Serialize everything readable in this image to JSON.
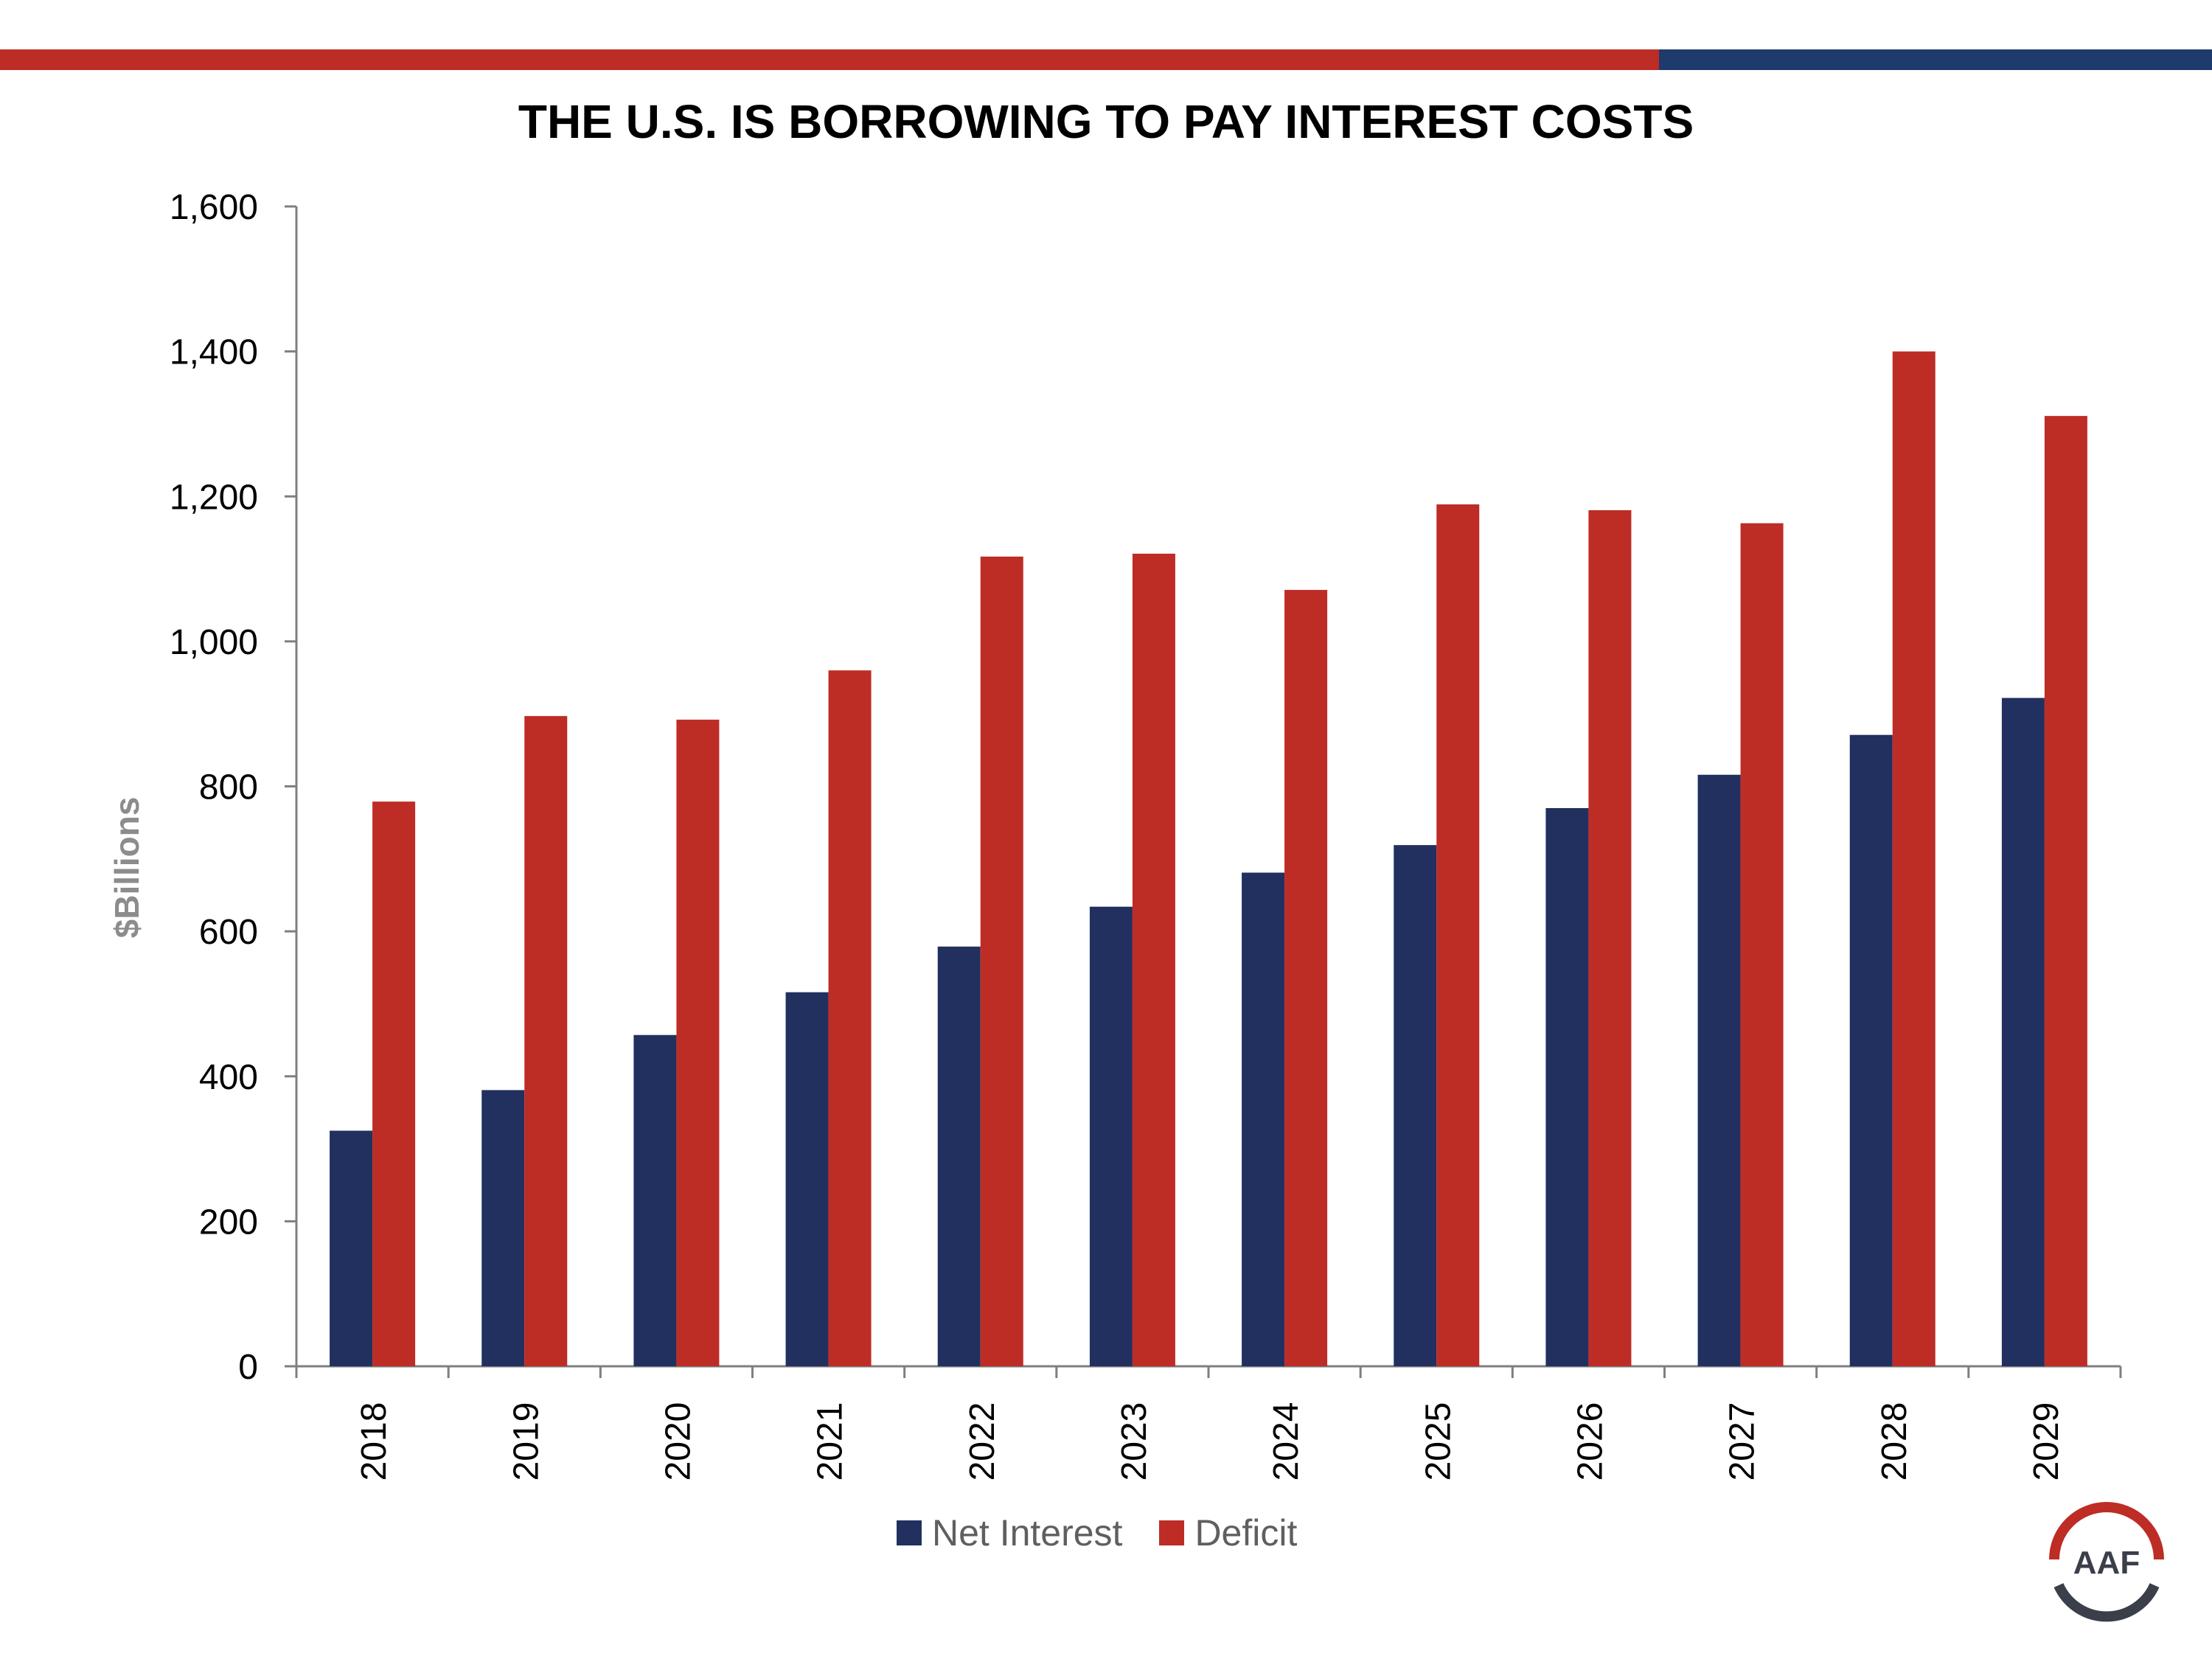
{
  "chart_data": {
    "type": "bar",
    "title": "THE U.S. IS BORROWING TO PAY INTEREST COSTS",
    "ylabel": "$Billions",
    "xlabel": "",
    "ylim": [
      0,
      1600
    ],
    "yticks": [
      "0",
      "200",
      "400",
      "600",
      "800",
      "1,000",
      "1,200",
      "1,400",
      "1,600"
    ],
    "categories": [
      "2018",
      "2019",
      "2020",
      "2021",
      "2022",
      "2023",
      "2024",
      "2025",
      "2026",
      "2027",
      "2028",
      "2029"
    ],
    "series": [
      {
        "name": "Net Interest",
        "color": "#22305F",
        "values": [
          325,
          381,
          457,
          516,
          579,
          634,
          681,
          719,
          770,
          816,
          871,
          922
        ]
      },
      {
        "name": "Deficit",
        "color": "#BE2C26",
        "values": [
          779,
          897,
          892,
          960,
          1117,
          1121,
          1071,
          1189,
          1181,
          1163,
          1400,
          1311
        ]
      }
    ],
    "grid": false,
    "legend": "bottom"
  },
  "logo": {
    "text": "AAF",
    "colors": [
      "#BE2C26",
      "#3A3F4A"
    ]
  },
  "header_colors": [
    "#BE2C26",
    "#1F3A6C"
  ]
}
